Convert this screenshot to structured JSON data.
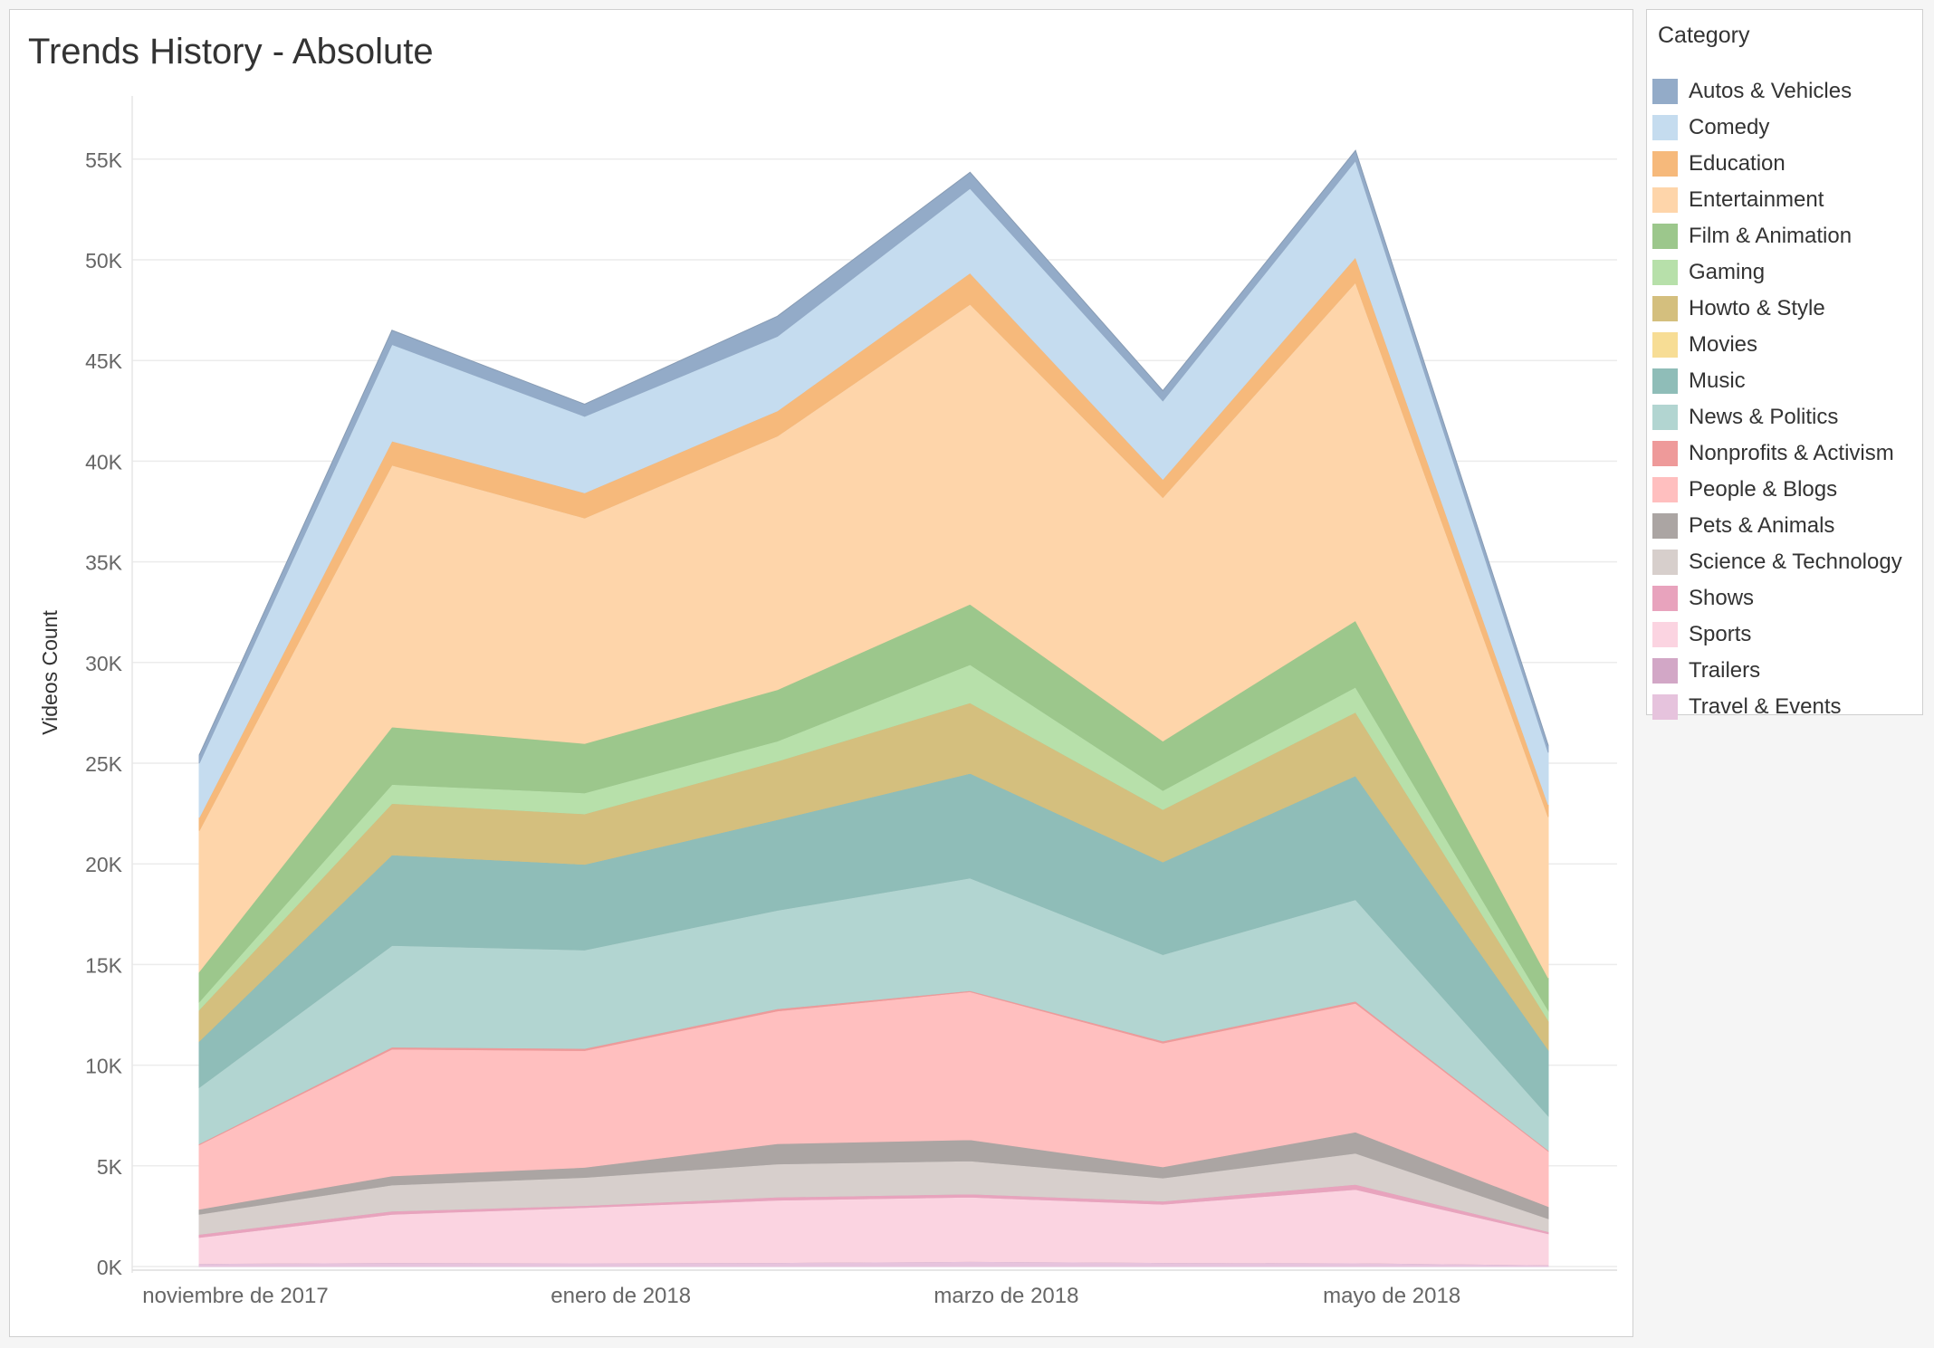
{
  "title": "Trends History - Absolute",
  "legend": {
    "title": "Category"
  },
  "chart_data": {
    "type": "area",
    "stacked": true,
    "title": "Trends History - Absolute",
    "xlabel": "",
    "ylabel": "Videos Count",
    "ylim": [
      0,
      58000
    ],
    "grid": true,
    "legend_position": "right",
    "x": [
      "2017-11",
      "2017-12",
      "2018-01",
      "2018-02",
      "2018-03",
      "2018-04",
      "2018-05",
      "2018-06"
    ],
    "x_tick_labels": [
      {
        "x": "2017-11",
        "label": "noviembre de 2017"
      },
      {
        "x": "2018-01",
        "label": "enero de 2018"
      },
      {
        "x": "2018-03",
        "label": "marzo de 2018"
      },
      {
        "x": "2018-05",
        "label": "mayo de 2018"
      }
    ],
    "y_ticks": [
      {
        "value": 0,
        "label": "0K"
      },
      {
        "value": 5000,
        "label": "5K"
      },
      {
        "value": 10000,
        "label": "10K"
      },
      {
        "value": 15000,
        "label": "15K"
      },
      {
        "value": 20000,
        "label": "20K"
      },
      {
        "value": 25000,
        "label": "25K"
      },
      {
        "value": 30000,
        "label": "30K"
      },
      {
        "value": 35000,
        "label": "35K"
      },
      {
        "value": 40000,
        "label": "40K"
      },
      {
        "value": 45000,
        "label": "45K"
      },
      {
        "value": 50000,
        "label": "50K"
      },
      {
        "value": 55000,
        "label": "55K"
      }
    ],
    "series": [
      {
        "name": "Travel & Events",
        "color": "#e6c3dd",
        "values": [
          150,
          200,
          180,
          200,
          250,
          200,
          180,
          80
        ]
      },
      {
        "name": "Trailers",
        "color": "#d2a7c6",
        "values": [
          0,
          0,
          0,
          0,
          0,
          0,
          0,
          0
        ]
      },
      {
        "name": "Sports",
        "color": "#fbd4e1",
        "values": [
          1300,
          2400,
          2750,
          3100,
          3200,
          2900,
          3650,
          1550
        ]
      },
      {
        "name": "Shows",
        "color": "#e8a3bd",
        "values": [
          150,
          150,
          100,
          150,
          150,
          150,
          250,
          100
        ]
      },
      {
        "name": "Science & Technology",
        "color": "#d7cfcc",
        "values": [
          1000,
          1300,
          1400,
          1650,
          1650,
          1150,
          1550,
          650
        ]
      },
      {
        "name": "Pets & Animals",
        "color": "#aba5a3",
        "values": [
          250,
          450,
          500,
          1000,
          1050,
          550,
          1050,
          600
        ]
      },
      {
        "name": "People & Blogs",
        "color": "#ffbfbf",
        "values": [
          3200,
          6300,
          5800,
          6600,
          7350,
          6150,
          6400,
          2750
        ]
      },
      {
        "name": "Nonprofits & Activism",
        "color": "#ee9a9a",
        "values": [
          50,
          100,
          100,
          100,
          50,
          100,
          100,
          50
        ]
      },
      {
        "name": "News & Politics",
        "color": "#b2d5d1",
        "values": [
          2800,
          5050,
          4900,
          4900,
          5600,
          4300,
          5050,
          1700
        ]
      },
      {
        "name": "Music",
        "color": "#8fbdb8",
        "values": [
          2300,
          4500,
          4250,
          4500,
          5200,
          4600,
          6150,
          3300
        ]
      },
      {
        "name": "Movies",
        "color": "#f7dd95",
        "values": [
          0,
          0,
          0,
          0,
          0,
          0,
          0,
          0
        ]
      },
      {
        "name": "Howto & Style",
        "color": "#d4bf7e",
        "values": [
          1550,
          2550,
          2500,
          2900,
          3500,
          2600,
          3150,
          1450
        ]
      },
      {
        "name": "Gaming",
        "color": "#b7e0aa",
        "values": [
          400,
          950,
          1050,
          1000,
          1900,
          950,
          1250,
          500
        ]
      },
      {
        "name": "Film & Animation",
        "color": "#9cc78c",
        "values": [
          1500,
          2850,
          2450,
          2550,
          3000,
          2450,
          3300,
          1600
        ]
      },
      {
        "name": "Entertainment",
        "color": "#fed5aa",
        "values": [
          7000,
          13000,
          11200,
          12600,
          14900,
          12100,
          16800,
          8000
        ]
      },
      {
        "name": "Education",
        "color": "#f6b97b",
        "values": [
          650,
          1200,
          1250,
          1250,
          1550,
          900,
          1250,
          600
        ]
      },
      {
        "name": "Comedy",
        "color": "#c5dcef",
        "values": [
          2700,
          4800,
          3800,
          3700,
          4200,
          3900,
          4800,
          2600
        ]
      },
      {
        "name": "Autos & Vehicles",
        "color": "#93abc8",
        "values": [
          400,
          700,
          600,
          1000,
          800,
          500,
          500,
          350
        ]
      }
    ]
  }
}
